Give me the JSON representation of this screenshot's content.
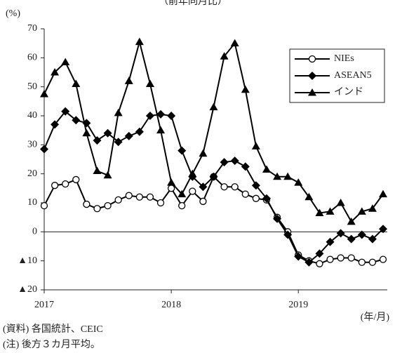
{
  "chart_data": {
    "type": "line",
    "title": "（前年同月比）",
    "y_label": "(%)",
    "x_label": "(年/月)",
    "source": "(資料) 各国統計、CEIC",
    "note": "(注) 後方３カ月平均。",
    "categories": [
      "2017",
      null,
      null,
      null,
      null,
      null,
      null,
      null,
      null,
      null,
      null,
      null,
      "2018",
      null,
      null,
      null,
      null,
      null,
      null,
      null,
      null,
      null,
      null,
      null,
      "2019",
      null,
      null,
      null,
      null,
      null,
      null,
      null,
      null
    ],
    "series": [
      {
        "name": "NIEs",
        "color": "#000000",
        "marker": "circle",
        "values": [
          9,
          16,
          16.5,
          18,
          9.5,
          8,
          9,
          11,
          12.5,
          12,
          12,
          10,
          15,
          9,
          14,
          10.5,
          19,
          15.5,
          15.5,
          13,
          11.5,
          11,
          5,
          0,
          -8,
          -10,
          -11,
          -9.5,
          -9,
          -9,
          -10.5,
          -10.5,
          -9.5
        ]
      },
      {
        "name": "ASEAN5",
        "color": "#000000",
        "marker": "diamond",
        "values": [
          28.5,
          37,
          41.5,
          38.5,
          37.5,
          31.5,
          34,
          31,
          33,
          34.5,
          40,
          40.5,
          40,
          28,
          19,
          15.5,
          19,
          24,
          24.5,
          22.5,
          16,
          11.5,
          4.5,
          -1,
          -8.5,
          -10.5,
          -7.5,
          -3.5,
          -0.5,
          -2.5,
          -1,
          -2.5,
          1
        ]
      },
      {
        "name": "インド",
        "color": "#000000",
        "marker": "triangle",
        "values": [
          47.5,
          55,
          58.5,
          51,
          34,
          21,
          19.5,
          41,
          52,
          65.5,
          51,
          35,
          17,
          13,
          20,
          27,
          43,
          60.5,
          65,
          49,
          29.5,
          21.5,
          19,
          19,
          17,
          12,
          6.5,
          7,
          10,
          3.5,
          7,
          8,
          13
        ]
      }
    ],
    "ylim": [
      -20,
      70
    ],
    "yticks": [
      {
        "value": -20,
        "label": "▲20"
      },
      {
        "value": -10,
        "label": "▲10"
      },
      0,
      10,
      20,
      30,
      40,
      50,
      60,
      70
    ],
    "legend": "top-right"
  }
}
